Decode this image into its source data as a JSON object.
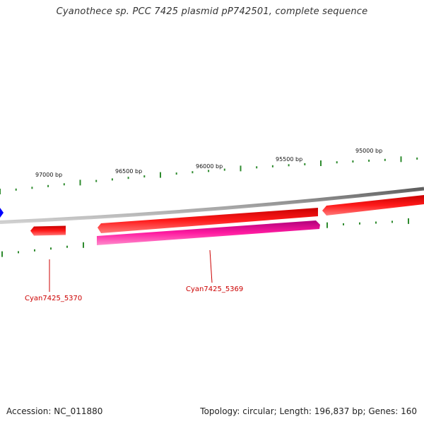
{
  "title": "Cyanothece sp. PCC 7425 plasmid pP742501, complete sequence",
  "footer": {
    "accession": "Accession: NC_011880",
    "summary": "Topology: circular; Length: 196,837 bp; Genes: 160"
  },
  "colors": {
    "backbone": "#8a8a8a",
    "tick": "#2e8b2e",
    "forward_gene": "#ff0000",
    "reverse_gene": "#ff1493",
    "label": "#cc0000",
    "marker": "#0000ff"
  },
  "scale_labels": [
    {
      "bp": 97000,
      "text": "97000 bp"
    },
    {
      "bp": 96500,
      "text": "96500 bp"
    },
    {
      "bp": 96000,
      "text": "96000 bp"
    },
    {
      "bp": 95500,
      "text": "95500 bp"
    },
    {
      "bp": 95000,
      "text": "95000 bp"
    }
  ],
  "gene_labels": [
    {
      "name": "Cyan7425_5370"
    },
    {
      "name": "Cyan7425_5369"
    }
  ]
}
